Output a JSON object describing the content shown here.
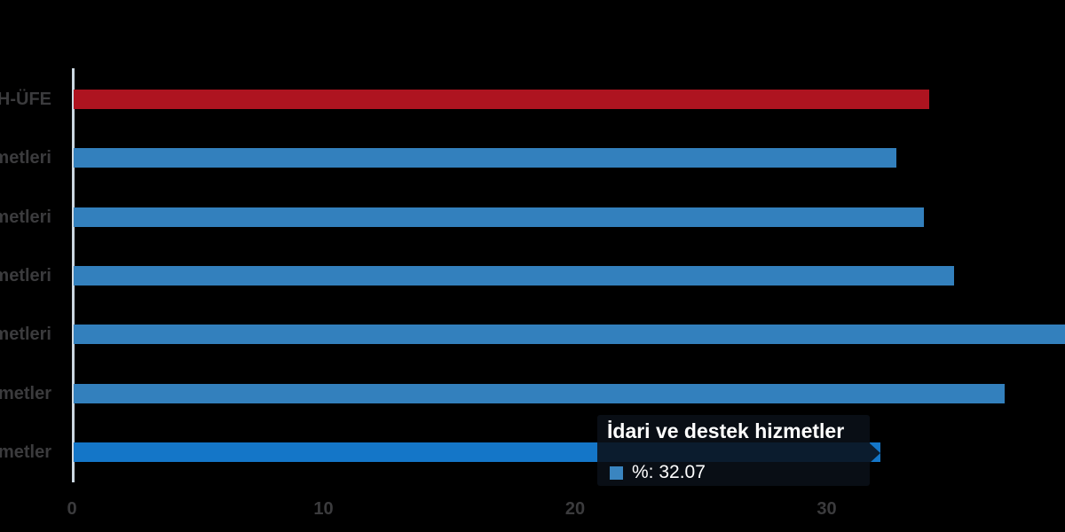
{
  "chart_data": {
    "type": "bar",
    "orientation": "horizontal",
    "title": "",
    "xlabel": "",
    "ylabel": "",
    "x_tick_labels": [
      "0",
      "10",
      "20",
      "30"
    ],
    "x_tick_values": [
      0,
      10,
      20,
      30
    ],
    "xlim": [
      0,
      39.4
    ],
    "grid": "off",
    "legend": "none",
    "series_name": "%",
    "rows": [
      {
        "visible_label": "H-ÜFE",
        "value": 34.0,
        "variant": "red"
      },
      {
        "visible_label": "metleri",
        "value": 32.7,
        "variant": "normal"
      },
      {
        "visible_label": "metleri",
        "value": 33.8,
        "variant": "normal"
      },
      {
        "visible_label": "metleri",
        "value": 35.0,
        "variant": "normal"
      },
      {
        "visible_label": "metleri",
        "value": 39.5,
        "variant": "normal",
        "clipped": true
      },
      {
        "visible_label": "metler",
        "value": 37.0,
        "variant": "normal"
      },
      {
        "visible_label": "metler",
        "value": 32.07,
        "variant": "highlight"
      }
    ],
    "note": "Category labels are truncated at the left image edge; row 5 bar is clipped at the right image edge"
  },
  "tooltip": {
    "title": "İdari ve destek hizmetler",
    "series_name": "%",
    "value": 32.07,
    "value_text": "%: 32.07"
  },
  "colors": {
    "background": "#000000",
    "bar_blue": "#3380bd",
    "bar_red": "#ae1420",
    "bar_highlight": "#1476c8",
    "axis_line": "#ccd8e2",
    "label_text": "#3b3b3d",
    "tooltip_bg": "rgba(10,16,24,0.88)",
    "tooltip_text": "#ffffff",
    "tooltip_marker": "#3a85c0"
  }
}
